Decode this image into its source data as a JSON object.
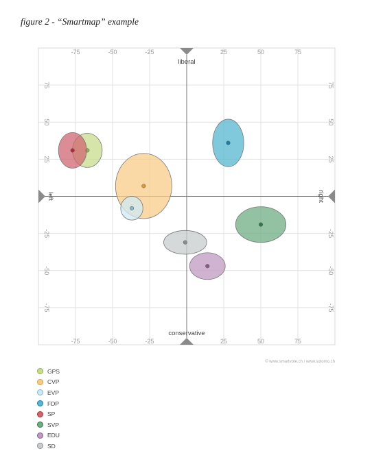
{
  "caption": "figure 2 - “Smartmap” example",
  "credit": "© www.smartvote.ch / www.sotomo.ch",
  "chart_data": {
    "type": "scatter",
    "title": "",
    "xlim": [
      -100,
      100
    ],
    "ylim": [
      -100,
      100
    ],
    "xticks": [
      -75,
      -50,
      -25,
      25,
      50,
      75
    ],
    "yticks": [
      75,
      50,
      25,
      -25,
      -50,
      -75
    ],
    "grid": true,
    "axis_labels": {
      "top": "liberal",
      "bottom": "conservative",
      "left": "left",
      "right": "right"
    },
    "legend_position": "bottom-left",
    "series": [
      {
        "name": "GPS",
        "x": -67,
        "y": 31,
        "rx": 10,
        "ry": 11.5,
        "fill": "#c8dc8c",
        "dot": "#8fb24a"
      },
      {
        "name": "CVP",
        "x": -29,
        "y": 7,
        "rx": 19,
        "ry": 22,
        "fill": "#f8cc88",
        "dot": "#e09a2e"
      },
      {
        "name": "EVP",
        "x": -37,
        "y": -8,
        "rx": 7.5,
        "ry": 8,
        "fill": "#cfeaf4",
        "dot": "#7fb8cc"
      },
      {
        "name": "FDP",
        "x": 28,
        "y": 36,
        "rx": 10.5,
        "ry": 16,
        "fill": "#55b7d2",
        "dot": "#1a7fa3"
      },
      {
        "name": "SP",
        "x": -77,
        "y": 31,
        "rx": 9.5,
        "ry": 12,
        "fill": "#d06570",
        "dot": "#b32a35"
      },
      {
        "name": "SVP",
        "x": 50,
        "y": -19,
        "rx": 17,
        "ry": 12,
        "fill": "#6eae82",
        "dot": "#2e7a4a"
      },
      {
        "name": "EDU",
        "x": 14,
        "y": -47,
        "rx": 12,
        "ry": 9,
        "fill": "#c09ac0",
        "dot": "#8a5a8a"
      },
      {
        "name": "SD",
        "x": -1,
        "y": -31,
        "rx": 14.5,
        "ry": 8,
        "fill": "#c8ccce",
        "dot": "#8a8e90"
      }
    ]
  }
}
